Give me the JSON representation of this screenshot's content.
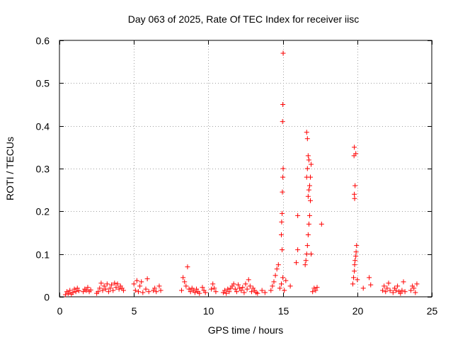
{
  "chart_data": {
    "type": "scatter",
    "title": "Day 063 of 2025, Rate Of TEC Index for receiver iisc",
    "xlabel": "GPS time / hours",
    "ylabel": "ROTI / TECUs",
    "xlim": [
      0,
      25
    ],
    "ylim": [
      0,
      0.6
    ],
    "xticks": [
      0,
      5,
      10,
      15,
      20,
      25
    ],
    "yticks": [
      0,
      0.1,
      0.2,
      0.3,
      0.4,
      0.5,
      0.6
    ],
    "xtick_labels": [
      "0",
      "5",
      "10",
      "15",
      "20",
      "25"
    ],
    "ytick_labels": [
      "0",
      "0.1",
      "0.2",
      "0.3",
      "0.4",
      "0.5",
      "0.6"
    ],
    "grid": true,
    "marker": "+",
    "color": "#ff0000",
    "series": [
      {
        "name": "ROTI",
        "points": [
          [
            0.4,
            0.005
          ],
          [
            0.5,
            0.012
          ],
          [
            0.6,
            0.008
          ],
          [
            0.7,
            0.015
          ],
          [
            0.8,
            0.006
          ],
          [
            0.9,
            0.01
          ],
          [
            1.0,
            0.018
          ],
          [
            1.1,
            0.012
          ],
          [
            1.2,
            0.02
          ],
          [
            1.3,
            0.014
          ],
          [
            1.6,
            0.012
          ],
          [
            1.7,
            0.018
          ],
          [
            1.8,
            0.015
          ],
          [
            1.9,
            0.022
          ],
          [
            2.0,
            0.012
          ],
          [
            2.1,
            0.016
          ],
          [
            2.5,
            0.008
          ],
          [
            2.6,
            0.012
          ],
          [
            2.7,
            0.02
          ],
          [
            2.8,
            0.032
          ],
          [
            2.9,
            0.015
          ],
          [
            3.0,
            0.025
          ],
          [
            3.1,
            0.018
          ],
          [
            3.2,
            0.03
          ],
          [
            3.3,
            0.012
          ],
          [
            3.4,
            0.02
          ],
          [
            3.5,
            0.028
          ],
          [
            3.6,
            0.015
          ],
          [
            3.7,
            0.032
          ],
          [
            3.8,
            0.022
          ],
          [
            3.9,
            0.03
          ],
          [
            4.0,
            0.018
          ],
          [
            4.1,
            0.025
          ],
          [
            4.2,
            0.02
          ],
          [
            4.3,
            0.015
          ],
          [
            5.0,
            0.03
          ],
          [
            5.1,
            0.015
          ],
          [
            5.2,
            0.038
          ],
          [
            5.3,
            0.012
          ],
          [
            5.4,
            0.025
          ],
          [
            5.5,
            0.035
          ],
          [
            5.6,
            0.01
          ],
          [
            5.8,
            0.018
          ],
          [
            5.9,
            0.042
          ],
          [
            6.0,
            0.012
          ],
          [
            6.3,
            0.015
          ],
          [
            6.4,
            0.02
          ],
          [
            6.5,
            0.012
          ],
          [
            6.7,
            0.025
          ],
          [
            6.8,
            0.015
          ],
          [
            8.2,
            0.015
          ],
          [
            8.3,
            0.045
          ],
          [
            8.4,
            0.035
          ],
          [
            8.5,
            0.025
          ],
          [
            8.6,
            0.07
          ],
          [
            8.7,
            0.018
          ],
          [
            8.8,
            0.012
          ],
          [
            8.9,
            0.02
          ],
          [
            9.0,
            0.015
          ],
          [
            9.1,
            0.01
          ],
          [
            9.2,
            0.018
          ],
          [
            9.3,
            0.012
          ],
          [
            9.4,
            0.008
          ],
          [
            9.6,
            0.022
          ],
          [
            9.7,
            0.015
          ],
          [
            9.8,
            0.01
          ],
          [
            10.2,
            0.018
          ],
          [
            10.3,
            0.03
          ],
          [
            10.4,
            0.02
          ],
          [
            10.5,
            0.012
          ],
          [
            11.0,
            0.01
          ],
          [
            11.1,
            0.015
          ],
          [
            11.2,
            0.008
          ],
          [
            11.3,
            0.018
          ],
          [
            11.4,
            0.012
          ],
          [
            11.5,
            0.02
          ],
          [
            11.6,
            0.025
          ],
          [
            11.7,
            0.03
          ],
          [
            11.8,
            0.018
          ],
          [
            11.9,
            0.012
          ],
          [
            12.0,
            0.028
          ],
          [
            12.1,
            0.02
          ],
          [
            12.2,
            0.015
          ],
          [
            12.3,
            0.022
          ],
          [
            12.4,
            0.01
          ],
          [
            12.5,
            0.03
          ],
          [
            12.6,
            0.018
          ],
          [
            12.7,
            0.04
          ],
          [
            12.8,
            0.025
          ],
          [
            12.9,
            0.012
          ],
          [
            13.0,
            0.02
          ],
          [
            13.1,
            0.015
          ],
          [
            13.2,
            0.01
          ],
          [
            13.3,
            0.008
          ],
          [
            13.6,
            0.015
          ],
          [
            13.8,
            0.01
          ],
          [
            14.2,
            0.015
          ],
          [
            14.3,
            0.025
          ],
          [
            14.4,
            0.035
          ],
          [
            14.5,
            0.05
          ],
          [
            14.6,
            0.065
          ],
          [
            14.7,
            0.075
          ],
          [
            14.8,
            0.02
          ],
          [
            14.9,
            0.03
          ],
          [
            15.0,
            0.045
          ],
          [
            15.1,
            0.015
          ],
          [
            14.95,
            0.11
          ],
          [
            14.9,
            0.145
          ],
          [
            14.92,
            0.175
          ],
          [
            14.95,
            0.195
          ],
          [
            14.97,
            0.245
          ],
          [
            15.0,
            0.28
          ],
          [
            15.02,
            0.3
          ],
          [
            14.98,
            0.41
          ],
          [
            15.0,
            0.45
          ],
          [
            15.02,
            0.57
          ],
          [
            15.2,
            0.038
          ],
          [
            15.5,
            0.025
          ],
          [
            15.9,
            0.08
          ],
          [
            16.0,
            0.11
          ],
          [
            16.0,
            0.19
          ],
          [
            16.5,
            0.075
          ],
          [
            16.55,
            0.085
          ],
          [
            16.6,
            0.1
          ],
          [
            16.65,
            0.12
          ],
          [
            16.7,
            0.145
          ],
          [
            16.75,
            0.17
          ],
          [
            16.8,
            0.19
          ],
          [
            16.6,
            0.28
          ],
          [
            16.65,
            0.3
          ],
          [
            16.7,
            0.235
          ],
          [
            16.75,
            0.25
          ],
          [
            16.8,
            0.26
          ],
          [
            16.85,
            0.28
          ],
          [
            16.9,
            0.31
          ],
          [
            16.7,
            0.33
          ],
          [
            16.75,
            0.32
          ],
          [
            16.65,
            0.37
          ],
          [
            16.6,
            0.385
          ],
          [
            16.85,
            0.225
          ],
          [
            16.9,
            0.1
          ],
          [
            17.0,
            0.012
          ],
          [
            17.1,
            0.02
          ],
          [
            17.2,
            0.015
          ],
          [
            17.3,
            0.022
          ],
          [
            17.6,
            0.17
          ],
          [
            19.7,
            0.03
          ],
          [
            19.75,
            0.045
          ],
          [
            19.8,
            0.06
          ],
          [
            19.82,
            0.075
          ],
          [
            19.85,
            0.085
          ],
          [
            19.9,
            0.095
          ],
          [
            19.92,
            0.105
          ],
          [
            19.95,
            0.12
          ],
          [
            19.8,
            0.24
          ],
          [
            19.85,
            0.26
          ],
          [
            19.82,
            0.23
          ],
          [
            19.78,
            0.33
          ],
          [
            19.9,
            0.335
          ],
          [
            19.8,
            0.35
          ],
          [
            20.0,
            0.04
          ],
          [
            20.4,
            0.02
          ],
          [
            20.8,
            0.045
          ],
          [
            20.9,
            0.028
          ],
          [
            21.7,
            0.015
          ],
          [
            21.8,
            0.025
          ],
          [
            21.9,
            0.012
          ],
          [
            22.0,
            0.02
          ],
          [
            22.1,
            0.032
          ],
          [
            22.2,
            0.015
          ],
          [
            22.4,
            0.01
          ],
          [
            22.5,
            0.02
          ],
          [
            22.6,
            0.015
          ],
          [
            22.7,
            0.025
          ],
          [
            22.8,
            0.012
          ],
          [
            22.9,
            0.008
          ],
          [
            23.0,
            0.015
          ],
          [
            23.1,
            0.035
          ],
          [
            23.2,
            0.012
          ],
          [
            23.6,
            0.015
          ],
          [
            23.7,
            0.025
          ],
          [
            23.8,
            0.02
          ],
          [
            23.9,
            0.01
          ],
          [
            24.0,
            0.03
          ]
        ]
      }
    ]
  }
}
